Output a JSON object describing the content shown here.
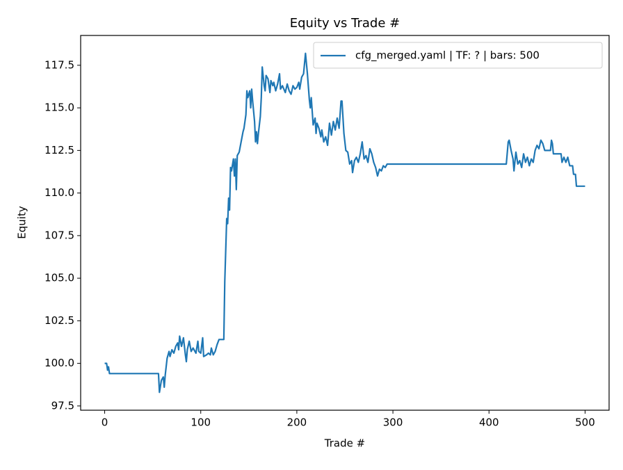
{
  "chart_data": {
    "type": "line",
    "title": "Equity vs Trade #",
    "x_label": "Trade #",
    "y_label": "Equity",
    "x": [
      0,
      2,
      3,
      4,
      5,
      56,
      57,
      59,
      61,
      62,
      63,
      65,
      67,
      68,
      70,
      72,
      74,
      76,
      77,
      78,
      80,
      82,
      84,
      85,
      86,
      88,
      90,
      92,
      95,
      97,
      98,
      100,
      102,
      103,
      106,
      108,
      110,
      111,
      113,
      115,
      117,
      119,
      124,
      125,
      127,
      128,
      129,
      130,
      131,
      132,
      134,
      135,
      136,
      137,
      138,
      140,
      142,
      144,
      145,
      147,
      148,
      149,
      151,
      152,
      153,
      154,
      156,
      157,
      158,
      159,
      160,
      162,
      163,
      164,
      166,
      167,
      168,
      170,
      172,
      173,
      175,
      176,
      178,
      180,
      182,
      183,
      185,
      188,
      190,
      192,
      194,
      196,
      198,
      200,
      202,
      203,
      205,
      207,
      209,
      211,
      213,
      214,
      215,
      217,
      219,
      220,
      221,
      223,
      225,
      226,
      228,
      230,
      232,
      234,
      236,
      238,
      240,
      242,
      244,
      246,
      247,
      249,
      251,
      253,
      255,
      257,
      258,
      260,
      262,
      264,
      266,
      268,
      270,
      272,
      274,
      276,
      278,
      280,
      282,
      284,
      286,
      288,
      290,
      292,
      294,
      300,
      418,
      420,
      421,
      423,
      425,
      426,
      428,
      430,
      432,
      434,
      436,
      438,
      440,
      442,
      444,
      446,
      448,
      450,
      452,
      454,
      456,
      458,
      460,
      464,
      465,
      466,
      467,
      470,
      475,
      476,
      478,
      480,
      482,
      484,
      487,
      488,
      490,
      491,
      497,
      500
    ],
    "series": [
      {
        "name": "cfg_merged.yaml | TF: ? | bars: 500",
        "color": "#1f77b4",
        "values": [
          100.0,
          100.0,
          99.6,
          99.8,
          99.4,
          99.4,
          98.3,
          99.0,
          99.2,
          98.6,
          99.3,
          100.3,
          100.7,
          100.4,
          100.8,
          100.6,
          101.0,
          101.2,
          100.8,
          101.6,
          101.0,
          101.5,
          100.5,
          100.1,
          100.8,
          101.3,
          100.7,
          100.9,
          100.6,
          101.3,
          100.7,
          100.6,
          101.5,
          100.4,
          100.5,
          100.6,
          100.5,
          100.9,
          100.5,
          100.7,
          101.1,
          101.4,
          101.4,
          104.8,
          108.5,
          108.2,
          109.7,
          109.0,
          111.5,
          111.3,
          112.0,
          111.0,
          112.0,
          110.2,
          112.2,
          112.4,
          113.0,
          113.6,
          113.8,
          114.6,
          116.0,
          115.6,
          116.0,
          115.0,
          116.1,
          115.4,
          114.2,
          113.0,
          113.6,
          112.9,
          113.5,
          114.5,
          115.6,
          117.4,
          116.3,
          116.0,
          116.9,
          116.7,
          115.9,
          116.6,
          116.3,
          116.5,
          116.0,
          116.4,
          117.0,
          116.1,
          116.3,
          115.9,
          116.4,
          116.0,
          115.8,
          116.3,
          116.1,
          116.2,
          116.5,
          116.1,
          116.8,
          117.0,
          118.2,
          117.0,
          115.5,
          115.0,
          115.6,
          114.0,
          114.4,
          113.5,
          114.1,
          113.8,
          113.3,
          113.7,
          113.0,
          113.3,
          112.8,
          114.1,
          113.4,
          114.2,
          113.7,
          114.4,
          113.8,
          115.4,
          115.4,
          113.5,
          112.5,
          112.4,
          111.7,
          111.9,
          111.2,
          111.9,
          112.1,
          111.8,
          112.3,
          113.0,
          112.0,
          112.2,
          111.8,
          112.6,
          112.3,
          111.8,
          111.5,
          111.0,
          111.4,
          111.3,
          111.6,
          111.5,
          111.7,
          111.7,
          111.7,
          113.0,
          113.1,
          112.5,
          112.0,
          111.3,
          112.4,
          111.7,
          111.9,
          111.5,
          112.3,
          111.8,
          112.1,
          111.6,
          112.0,
          111.8,
          112.5,
          112.8,
          112.6,
          113.1,
          112.9,
          112.5,
          112.5,
          112.5,
          113.1,
          112.9,
          112.3,
          112.3,
          112.3,
          111.8,
          112.1,
          111.8,
          112.1,
          111.6,
          111.6,
          111.1,
          111.1,
          110.4,
          110.4,
          110.4
        ]
      }
    ],
    "xlim": [
      -25,
      525
    ],
    "xticks": [
      0,
      100,
      200,
      300,
      400,
      500
    ],
    "ylim": [
      97.25,
      119.25
    ],
    "yticks": [
      97.5,
      {
        "value": 100,
        "label": "100.0"
      },
      102.5,
      {
        "value": 105,
        "label": "105.0"
      },
      107.5,
      {
        "value": 110,
        "label": "110.0"
      },
      112.5,
      {
        "value": 115,
        "label": "115.0"
      },
      117.5
    ],
    "grid": false,
    "legend": "upper right"
  }
}
